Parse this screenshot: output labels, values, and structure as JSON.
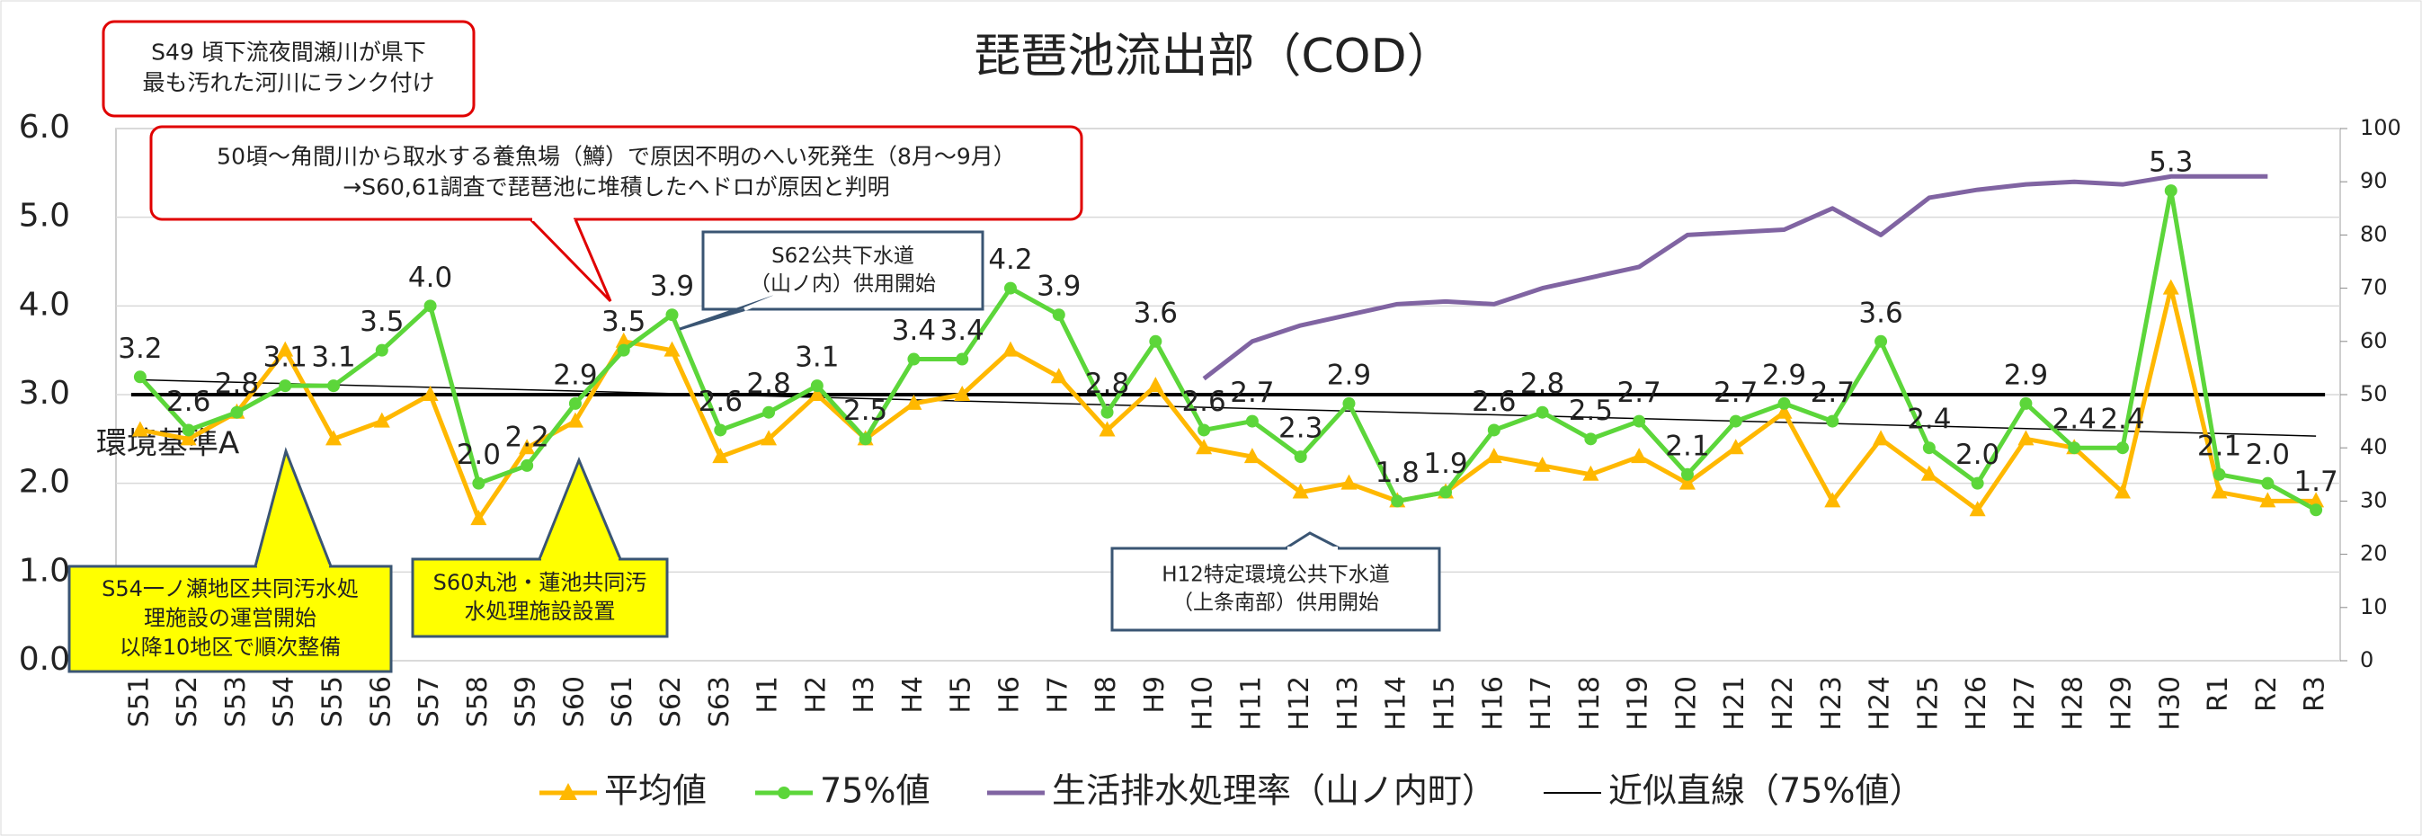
{
  "chart_data": {
    "type": "line",
    "title": "琵琶池流出部（COD）",
    "categories": [
      "S51",
      "S52",
      "S53",
      "S54",
      "S55",
      "S56",
      "S57",
      "S58",
      "S59",
      "S60",
      "S61",
      "S62",
      "S63",
      "H1",
      "H2",
      "H3",
      "H4",
      "H5",
      "H6",
      "H7",
      "H8",
      "H9",
      "H10",
      "H11",
      "H12",
      "H13",
      "H14",
      "H15",
      "H16",
      "H17",
      "H18",
      "H19",
      "H20",
      "H21",
      "H22",
      "H23",
      "H24",
      "H25",
      "H26",
      "H27",
      "H28",
      "H29",
      "H30",
      "R1",
      "R2",
      "R3"
    ],
    "series": [
      {
        "name": "平均値",
        "color": "#ffb800",
        "marker": "triangle",
        "values": [
          2.6,
          2.5,
          2.8,
          3.5,
          2.5,
          2.7,
          3.0,
          1.6,
          2.4,
          2.7,
          3.6,
          3.5,
          2.3,
          2.5,
          3.0,
          2.5,
          2.9,
          3.0,
          3.5,
          3.2,
          2.6,
          3.1,
          2.4,
          2.3,
          1.9,
          2.0,
          1.8,
          1.9,
          2.3,
          2.2,
          2.1,
          2.3,
          2.0,
          2.4,
          2.8,
          1.8,
          2.5,
          2.1,
          1.7,
          2.5,
          2.4,
          1.9,
          4.2,
          1.9,
          1.8,
          1.8
        ]
      },
      {
        "name": "75%値",
        "color": "#5cd63a",
        "marker": "circle",
        "values": [
          3.2,
          2.6,
          2.8,
          3.1,
          3.1,
          3.5,
          4.0,
          2.0,
          2.2,
          2.9,
          3.5,
          3.9,
          2.6,
          2.8,
          3.1,
          2.5,
          3.4,
          3.4,
          4.2,
          3.9,
          2.8,
          3.6,
          2.6,
          2.7,
          2.3,
          2.9,
          1.8,
          1.9,
          2.6,
          2.8,
          2.5,
          2.7,
          2.1,
          2.7,
          2.9,
          2.7,
          3.6,
          2.4,
          2.0,
          2.9,
          2.4,
          2.4,
          5.3,
          2.1,
          2.0,
          1.7
        ],
        "value_labels": [
          "3.2",
          "2.6",
          "2.8",
          "3.1",
          "3.1",
          "3.5",
          "4.0",
          "2.0",
          "2.2",
          "2.9",
          "3.5",
          "3.9",
          "2.6",
          "2.8",
          "3.1",
          "2.5",
          "3.4",
          "3.4",
          "4.2",
          "3.9",
          "2.8",
          "3.6",
          "2.6",
          "2.7",
          "2.3",
          "2.9",
          "1.8",
          "1.9",
          "2.6",
          "2.8",
          "2.5",
          "2.7",
          "2.1",
          "2.7",
          "2.9",
          "2.7",
          "3.6",
          "2.4",
          "2.0",
          "2.9",
          "2.4",
          "2.4",
          "5.3",
          "2.1",
          "2.0",
          "1.7"
        ]
      },
      {
        "name": "生活排水処理率（山ノ内町）",
        "color": "#8064a2",
        "marker": "none",
        "axis": "y2",
        "values": [
          null,
          null,
          null,
          null,
          null,
          null,
          null,
          null,
          null,
          null,
          null,
          null,
          null,
          null,
          null,
          null,
          null,
          null,
          null,
          null,
          null,
          null,
          53,
          60,
          63,
          65,
          67,
          67.5,
          67,
          70,
          72,
          74,
          80,
          80.5,
          81,
          85,
          80,
          87,
          88.5,
          89.5,
          90,
          89.5,
          91,
          91,
          91,
          null
        ]
      }
    ],
    "trendline": {
      "name": "近似直線（75%値）",
      "color": "#000000"
    },
    "reference_line": {
      "value": 3.0,
      "label": "環境基準A",
      "color": "#000000"
    },
    "ylim": [
      0,
      6
    ],
    "yticks": [
      {
        "value": 0,
        "label": "0.0"
      },
      {
        "value": 1,
        "label": "1.0"
      },
      {
        "value": 2,
        "label": "2.0"
      },
      {
        "value": 3,
        "label": "3.0"
      },
      {
        "value": 4,
        "label": "4.0"
      },
      {
        "value": 5,
        "label": "5.0"
      },
      {
        "value": 6,
        "label": "6.0"
      }
    ],
    "y2lim": [
      0,
      100
    ],
    "y2ticks": [
      0,
      10,
      20,
      30,
      40,
      50,
      60,
      70,
      80,
      90,
      100
    ],
    "grid": true,
    "legend": "bottom",
    "annotations": [
      {
        "lines": [
          "S49 頃下流夜間瀬川が県下",
          "最も汚れた河川にランク付け"
        ]
      },
      {
        "lines": [
          "50頃～角間川から取水する養魚場（鱒）で原因不明のへい死発生（8月～9月）",
          "→S60,61調査で琵琶池に堆積したヘドロが原因と判明"
        ]
      },
      {
        "lines": [
          "S62公共下水道",
          "（山ノ内）供用開始"
        ]
      },
      {
        "lines": [
          "S54一ノ瀬地区共同汚水処",
          "理施設の運営開始",
          "以降10地区で順次整備"
        ]
      },
      {
        "lines": [
          "S60丸池・蓮池共同汚",
          "水処理施設設置"
        ]
      },
      {
        "lines": [
          "H12特定環境公共下水道",
          "（上条南部）供用開始"
        ]
      }
    ]
  }
}
